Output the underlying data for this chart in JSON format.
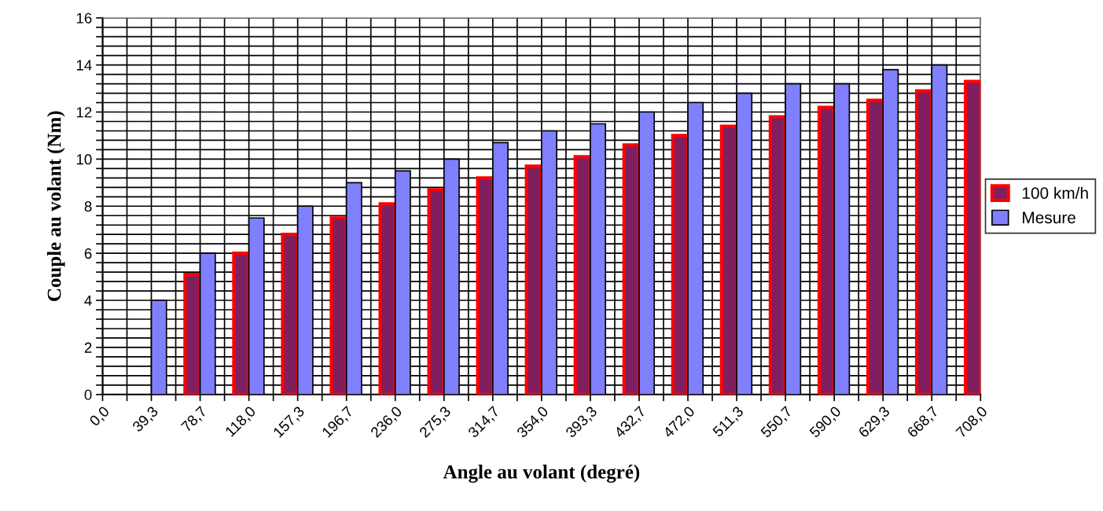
{
  "chart_data": {
    "type": "bar",
    "xlabel": "Angle au volant (degré)",
    "ylabel": "Couple au volant (Nm)",
    "categories": [
      "0,0",
      null,
      "39,3",
      null,
      "78,7",
      null,
      "118,0",
      null,
      "157,3",
      null,
      "196,7",
      null,
      "236,0",
      null,
      "275,3",
      null,
      "314,7",
      null,
      "354,0",
      null,
      "393,3",
      null,
      "432,7",
      null,
      "472,0",
      null,
      "511,3",
      null,
      "550,7",
      null,
      "590,0",
      null,
      "629,3",
      null,
      "668,7",
      null,
      "708,0"
    ],
    "series": [
      {
        "name": "100 km/h",
        "color": "#7f1f5f",
        "values": [
          null,
          null,
          null,
          null,
          5.1,
          null,
          6.0,
          null,
          6.8,
          null,
          7.5,
          null,
          8.1,
          null,
          8.7,
          null,
          9.2,
          null,
          9.7,
          null,
          10.1,
          null,
          10.6,
          null,
          11.0,
          null,
          11.4,
          null,
          11.8,
          null,
          12.2,
          null,
          12.5,
          null,
          12.9,
          null,
          13.3
        ]
      },
      {
        "name": "Mesure",
        "color": "#8080ff",
        "values": [
          null,
          null,
          4.0,
          null,
          6.0,
          null,
          7.5,
          null,
          8.0,
          null,
          9.0,
          null,
          9.5,
          null,
          10.0,
          null,
          10.7,
          null,
          11.2,
          null,
          11.5,
          null,
          12.0,
          null,
          12.4,
          null,
          12.8,
          null,
          13.2,
          null,
          13.2,
          null,
          13.8,
          null,
          14.0,
          null,
          null
        ]
      }
    ],
    "ylim": [
      0,
      16
    ],
    "yticks": [
      0,
      {
        "value": 0.4,
        "label": null
      },
      {
        "value": 0.8,
        "label": null
      },
      {
        "value": 1.2,
        "label": null
      },
      {
        "value": 1.6,
        "label": null
      },
      2,
      {
        "value": 2.4,
        "label": null
      },
      {
        "value": 2.8,
        "label": null
      },
      {
        "value": 3.2,
        "label": null
      },
      {
        "value": 3.6,
        "label": null
      },
      4,
      {
        "value": 4.4,
        "label": null
      },
      {
        "value": 4.8,
        "label": null
      },
      {
        "value": 5.2,
        "label": null
      },
      {
        "value": 5.6,
        "label": null
      },
      6,
      {
        "value": 6.4,
        "label": null
      },
      {
        "value": 6.8,
        "label": null
      },
      {
        "value": 7.2,
        "label": null
      },
      {
        "value": 7.6,
        "label": null
      },
      8,
      {
        "value": 8.4,
        "label": null
      },
      {
        "value": 8.8,
        "label": null
      },
      {
        "value": 9.2,
        "label": null
      },
      {
        "value": 9.6,
        "label": null
      },
      10,
      {
        "value": 10.4,
        "label": null
      },
      {
        "value": 10.8,
        "label": null
      },
      {
        "value": 11.2,
        "label": null
      },
      {
        "value": 11.6,
        "label": null
      },
      12,
      {
        "value": 12.4,
        "label": null
      },
      {
        "value": 12.8,
        "label": null
      },
      {
        "value": 13.2,
        "label": null
      },
      {
        "value": 13.6,
        "label": null
      },
      14,
      {
        "value": 14.4,
        "label": null
      },
      {
        "value": 14.8,
        "label": null
      },
      {
        "value": 15.2,
        "label": null
      },
      {
        "value": 15.6,
        "label": null
      },
      16
    ],
    "grid": true,
    "legend": "right"
  }
}
